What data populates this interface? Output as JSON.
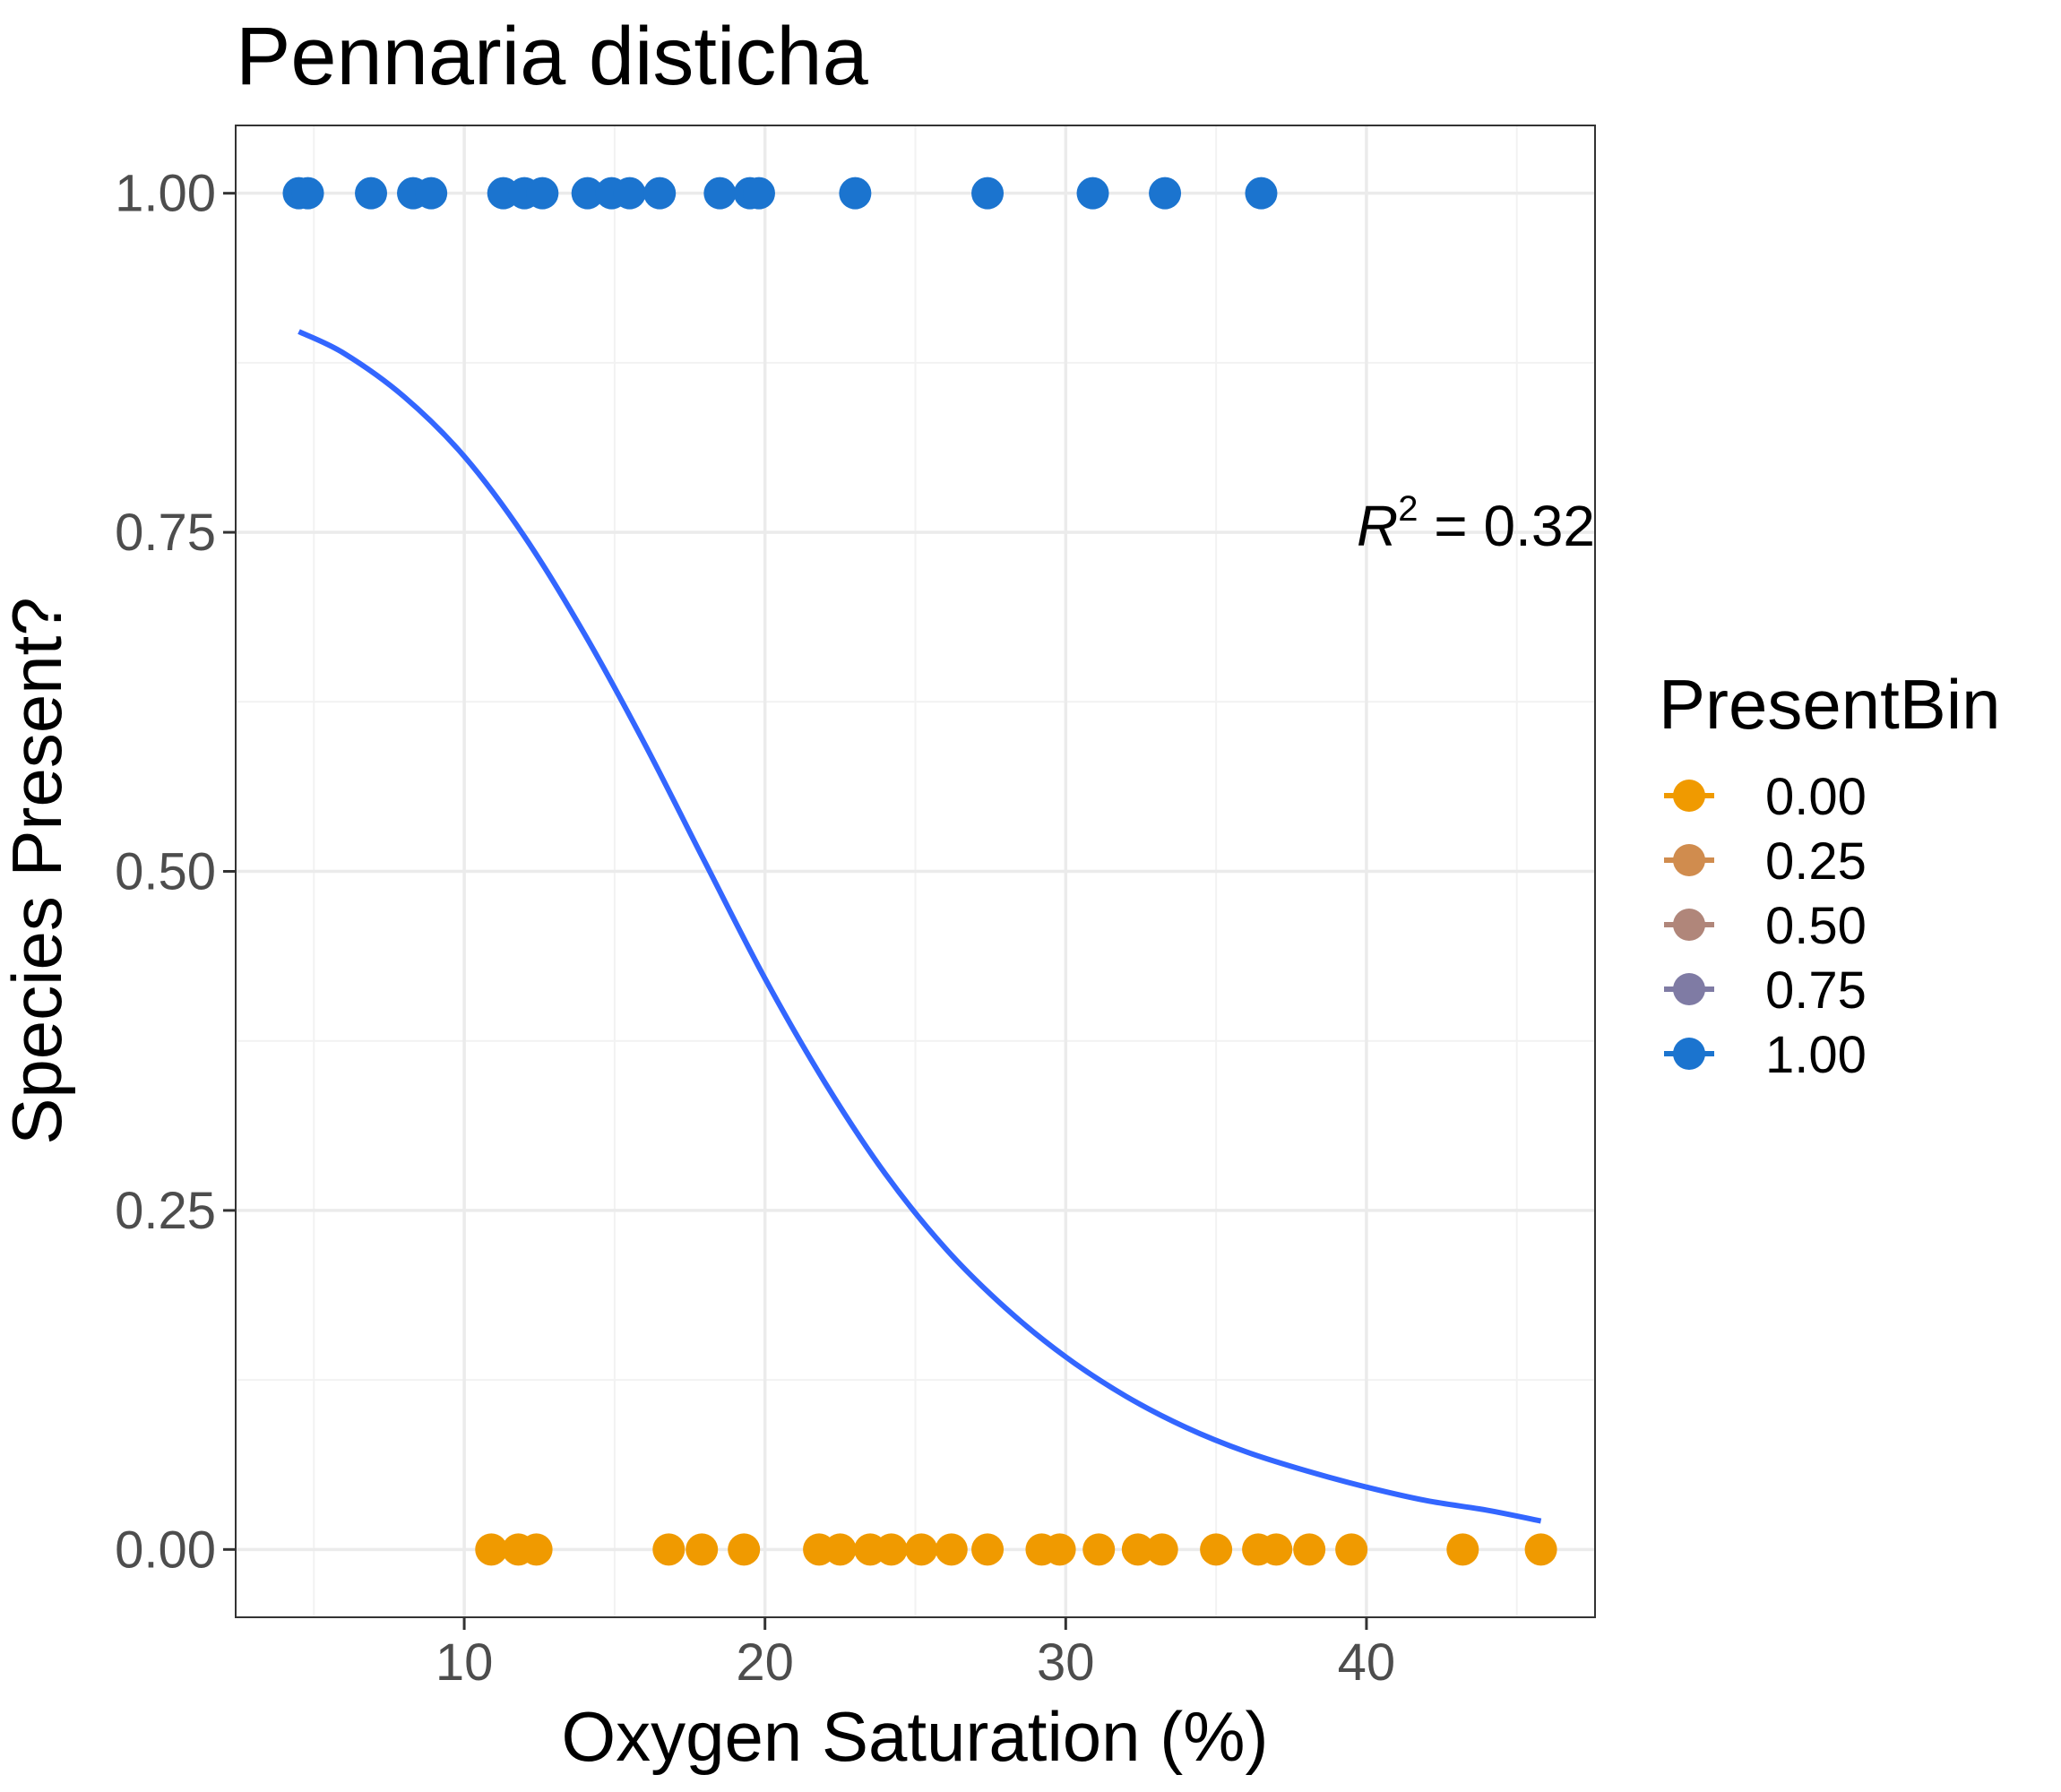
{
  "chart_data": {
    "type": "scatter",
    "title": "Pennaria disticha",
    "xlabel": "Oxygen Saturation (%)",
    "ylabel": "Species Present?",
    "xlim": [
      2.4,
      47.6
    ],
    "ylim": [
      -0.05,
      1.05
    ],
    "x_ticks": [
      10,
      20,
      30,
      40
    ],
    "x_tick_labels": [
      "10",
      "20",
      "30",
      "40"
    ],
    "y_ticks": [
      0,
      0.25,
      0.5,
      0.75,
      1
    ],
    "y_tick_labels": [
      "0.00",
      "0.25",
      "0.50",
      "0.75",
      "1.00"
    ],
    "grid": true,
    "legend": {
      "title": "PresentBin",
      "position": "right",
      "entries": [
        {
          "label": "0.00",
          "color": "#F09A00"
        },
        {
          "label": "0.25",
          "color": "#D08C4E"
        },
        {
          "label": "0.50",
          "color": "#B0867A"
        },
        {
          "label": "0.75",
          "color": "#7F7BA4"
        },
        {
          "label": "1.00",
          "color": "#1B74CF"
        }
      ]
    },
    "series": [
      {
        "name": "1.00",
        "color": "#1B74CF",
        "y": 1,
        "x": [
          4.5,
          4.8,
          6.9,
          8.3,
          8.9,
          11.3,
          12.0,
          12.6,
          14.1,
          14.9,
          15.5,
          16.5,
          18.5,
          19.5,
          19.8,
          23.0,
          27.4,
          30.9,
          33.3,
          36.5
        ]
      },
      {
        "name": "0.00",
        "color": "#F09A00",
        "y": 0,
        "x": [
          10.9,
          11.8,
          12.4,
          16.8,
          17.9,
          19.3,
          21.8,
          22.5,
          23.5,
          24.2,
          25.2,
          26.2,
          27.4,
          29.2,
          29.8,
          31.1,
          32.4,
          33.2,
          35.0,
          36.4,
          37.0,
          38.1,
          39.5,
          43.2,
          45.8
        ]
      }
    ],
    "fit": {
      "type": "logistic",
      "color": "#3366FF",
      "x": [
        4.5,
        6,
        8,
        10,
        12,
        14,
        16,
        18,
        20,
        22,
        24,
        26,
        28,
        30,
        32,
        34,
        36,
        38,
        40,
        42,
        44,
        45.8
      ],
      "y": [
        0.898,
        0.882,
        0.85,
        0.806,
        0.747,
        0.675,
        0.594,
        0.507,
        0.421,
        0.344,
        0.277,
        0.222,
        0.178,
        0.142,
        0.113,
        0.09,
        0.072,
        0.058,
        0.046,
        0.036,
        0.029,
        0.021
      ]
    },
    "annotation": {
      "base": "R",
      "sup": "2",
      "text": " = 0.32",
      "x": 47.6,
      "y": 0.74
    }
  }
}
